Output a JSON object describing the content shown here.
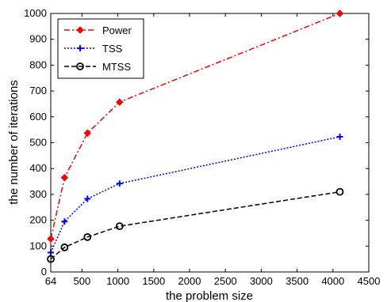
{
  "chart_data": {
    "type": "line",
    "xlabel": "the problem size",
    "ylabel": "the number of iterations",
    "xlim": [
      64,
      4500
    ],
    "ylim": [
      0,
      1000
    ],
    "xticks": [
      64,
      500,
      1000,
      1500,
      2000,
      2500,
      3000,
      3500,
      4000,
      4500
    ],
    "yticks": [
      0,
      100,
      200,
      300,
      400,
      500,
      600,
      700,
      800,
      900,
      1000
    ],
    "legend_position": "top-left",
    "grid": false,
    "series": [
      {
        "name": "Power",
        "color": "#ff0000",
        "dash": "dash-dot",
        "marker": "diamond",
        "x": [
          64,
          256,
          576,
          1024,
          4096
        ],
        "y": [
          128,
          365,
          537,
          657,
          1000
        ]
      },
      {
        "name": "TSS",
        "color": "#0000ff",
        "dash": "dotted",
        "marker": "plus",
        "x": [
          64,
          256,
          576,
          1024,
          4096
        ],
        "y": [
          75,
          195,
          283,
          342,
          523
        ]
      },
      {
        "name": "MTSS",
        "color": "#000000",
        "dash": "dashed",
        "marker": "circle",
        "x": [
          64,
          256,
          576,
          1024,
          4096
        ],
        "y": [
          50,
          95,
          135,
          177,
          310
        ]
      }
    ]
  }
}
